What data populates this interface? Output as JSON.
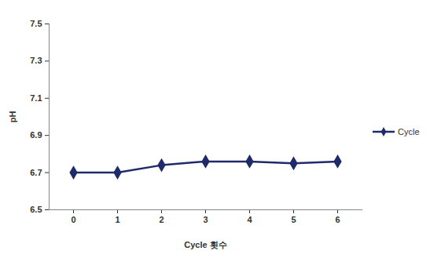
{
  "chart_data": {
    "type": "line",
    "x_label": "Cycle 횟수",
    "y_label": "pH",
    "categories": [
      "0",
      "1",
      "2",
      "3",
      "4",
      "5",
      "6"
    ],
    "series": [
      {
        "name": "Cycle",
        "color": "#1f2a6b",
        "marker": "diamond",
        "values": [
          6.7,
          6.7,
          6.74,
          6.76,
          6.76,
          6.75,
          6.76
        ]
      }
    ],
    "ylim": [
      6.5,
      7.5
    ],
    "yticks": [
      6.5,
      6.7,
      6.9,
      7.1,
      7.3,
      7.5
    ],
    "grid": false,
    "legend": "right"
  }
}
